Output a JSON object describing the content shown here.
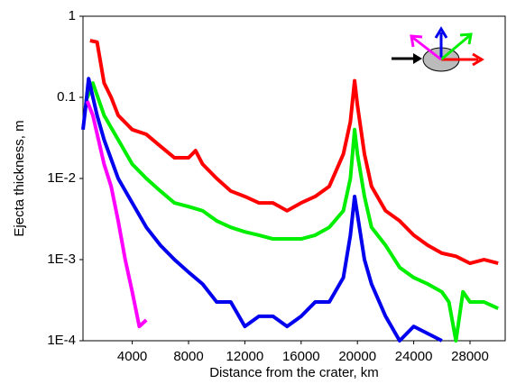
{
  "chart_data": {
    "type": "line",
    "x_label": "Distance from the crater, km",
    "y_label": "Ejecta thickness, m",
    "log_y": true,
    "xlim": [
      500,
      30500
    ],
    "ylim": [
      0.0001,
      1
    ],
    "xticks": [
      4000,
      8000,
      12000,
      16000,
      20000,
      24000,
      28000
    ],
    "yticks": [
      {
        "value": 0.0001,
        "label": "1E-4"
      },
      {
        "value": 0.001,
        "label": "1E-3"
      },
      {
        "value": 0.01,
        "label": "1E-2"
      },
      0.1,
      1
    ],
    "series": [
      {
        "color": "#ff0000",
        "x": [
          1000,
          1500,
          2000,
          2500,
          3000,
          4000,
          5000,
          6000,
          7000,
          8000,
          8500,
          9000,
          10000,
          11000,
          12000,
          13000,
          14000,
          15000,
          16000,
          17000,
          18000,
          19000,
          19500,
          19800,
          20000,
          20500,
          21000,
          22000,
          23000,
          24000,
          25000,
          26000,
          27000,
          28000,
          29000,
          30000
        ],
        "values": [
          0.5,
          0.48,
          0.15,
          0.1,
          0.06,
          0.04,
          0.035,
          0.025,
          0.018,
          0.018,
          0.022,
          0.015,
          0.01,
          0.007,
          0.006,
          0.005,
          0.005,
          0.004,
          0.005,
          0.006,
          0.008,
          0.02,
          0.05,
          0.16,
          0.08,
          0.02,
          0.008,
          0.004,
          0.003,
          0.002,
          0.0015,
          0.0012,
          0.0011,
          0.0009,
          0.001,
          0.0009
        ]
      },
      {
        "color": "#00ee00",
        "x": [
          700,
          1000,
          1200,
          2000,
          3000,
          4000,
          5000,
          6000,
          7000,
          8000,
          9000,
          10000,
          11000,
          12000,
          13000,
          14000,
          15000,
          16000,
          17000,
          18000,
          19000,
          19500,
          19800,
          20000,
          20500,
          21000,
          22000,
          23000,
          24000,
          25000,
          26000,
          26500,
          27000,
          27500,
          28000,
          29000,
          30000
        ],
        "values": [
          0.09,
          0.12,
          0.15,
          0.06,
          0.03,
          0.015,
          0.01,
          0.007,
          0.005,
          0.0045,
          0.004,
          0.003,
          0.0025,
          0.0022,
          0.002,
          0.0018,
          0.0018,
          0.0018,
          0.002,
          0.0025,
          0.004,
          0.01,
          0.04,
          0.02,
          0.006,
          0.0025,
          0.0015,
          0.0008,
          0.0006,
          0.0005,
          0.0004,
          0.0003,
          0.0001,
          0.0004,
          0.0003,
          0.0003,
          0.00025
        ]
      },
      {
        "color": "#0000ee",
        "x": [
          500,
          700,
          900,
          1500,
          2000,
          3000,
          4000,
          5000,
          6000,
          7000,
          8000,
          9000,
          10000,
          11000,
          12000,
          13000,
          14000,
          15000,
          16000,
          17000,
          18000,
          19000,
          19500,
          19800,
          20500,
          21000,
          22000,
          23000,
          24000,
          26000
        ],
        "values": [
          0.04,
          0.08,
          0.17,
          0.06,
          0.03,
          0.01,
          0.005,
          0.0025,
          0.0015,
          0.001,
          0.0007,
          0.0005,
          0.0003,
          0.0003,
          0.00015,
          0.0002,
          0.0002,
          0.00015,
          0.0002,
          0.0003,
          0.0003,
          0.0006,
          0.002,
          0.006,
          0.001,
          0.0005,
          0.0002,
          0.0001,
          0.00015,
          0.0001
        ]
      },
      {
        "color": "#ff00ff",
        "x": [
          800,
          1200,
          1600,
          2000,
          2500,
          3000,
          3500,
          4000,
          4500,
          5000
        ],
        "values": [
          0.09,
          0.06,
          0.03,
          0.015,
          0.008,
          0.003,
          0.001,
          0.0004,
          0.00015,
          0.00018
        ]
      }
    ]
  }
}
